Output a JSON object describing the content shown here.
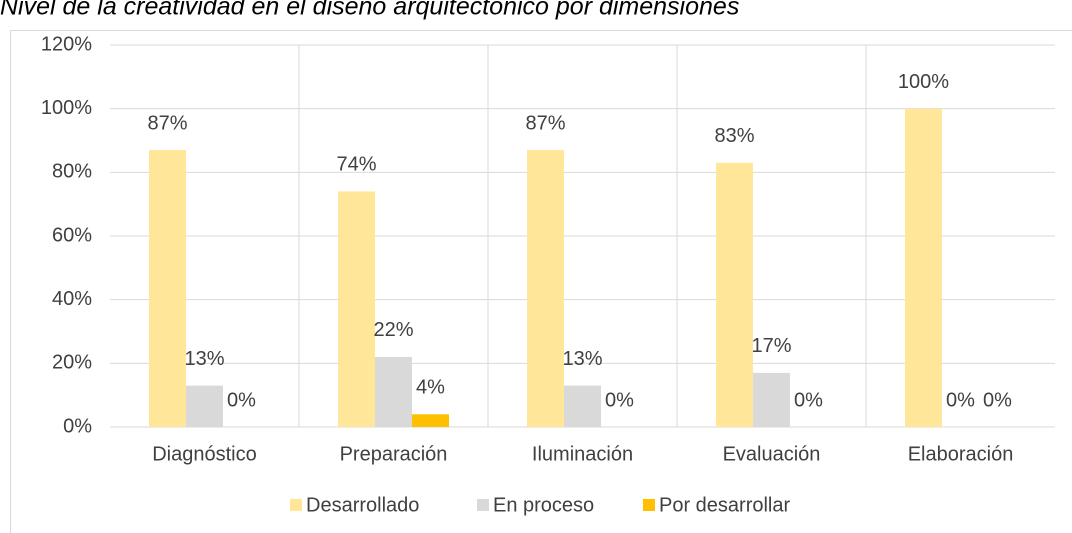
{
  "chart_data": {
    "type": "bar",
    "title": "Nivel de la creatividad en el diseño arquitectónico por dimensiones",
    "categories": [
      "Diagnóstico",
      "Preparación",
      "Iluminación",
      "Evaluación",
      "Elaboración"
    ],
    "series": [
      {
        "name": "Desarrollado",
        "color": "#ffe699",
        "values": [
          87,
          74,
          87,
          83,
          100
        ],
        "value_labels": [
          "87%",
          "74%",
          "87%",
          "83%",
          "100%"
        ]
      },
      {
        "name": "En proceso",
        "color": "#d9d9d9",
        "values": [
          13,
          22,
          13,
          17,
          0
        ],
        "value_labels": [
          "13%",
          "22%",
          "13%",
          "17%",
          "0%"
        ]
      },
      {
        "name": "Por desarrollar",
        "color": "#ffc000",
        "values": [
          0,
          4,
          0,
          0,
          0
        ],
        "value_labels": [
          "0%",
          "4%",
          "0%",
          "0%",
          "0%"
        ]
      }
    ],
    "ylim": [
      0,
      120
    ],
    "yticks": [
      {
        "value": 0,
        "label": "0%"
      },
      {
        "value": 20,
        "label": "20%"
      },
      {
        "value": 40,
        "label": "40%"
      },
      {
        "value": 60,
        "label": "60%"
      },
      {
        "value": 80,
        "label": "80%"
      },
      {
        "value": 100,
        "label": "100%"
      },
      {
        "value": 120,
        "label": "120%"
      }
    ],
    "grid": true,
    "legend": "bottom"
  }
}
